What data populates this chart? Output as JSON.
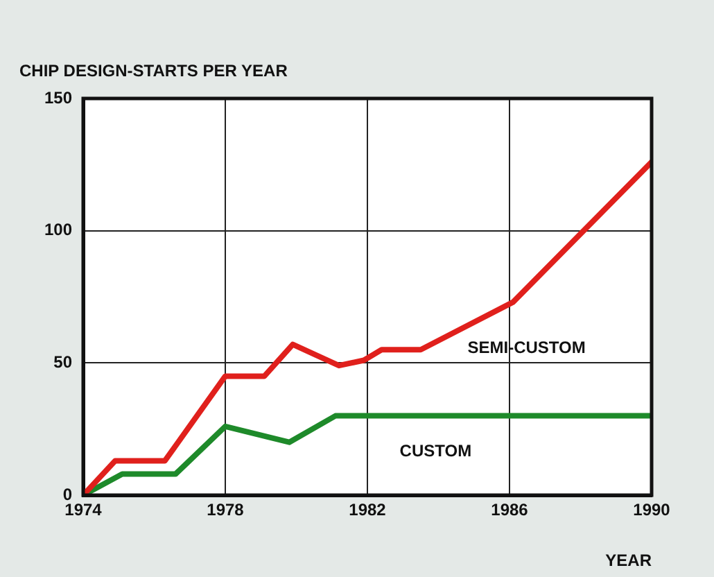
{
  "chart_data": {
    "type": "line",
    "title": "CHIP DESIGN-STARTS PER YEAR",
    "xlabel": "YEAR",
    "xlim": [
      1974,
      1990
    ],
    "xticks": [
      1974,
      1978,
      1982,
      1986,
      1990
    ],
    "ylim": [
      0,
      150
    ],
    "yticks": [
      0,
      50,
      100,
      150
    ],
    "grid": true,
    "legend": false,
    "marker": "none",
    "line_style": "solid",
    "series": [
      {
        "name": "SEMI-CUSTOM",
        "color": "#e0201c",
        "x": [
          1974,
          1974.9,
          1976.3,
          1978,
          1979.1,
          1979.9,
          1981.2,
          1981.9,
          1982.4,
          1983.5,
          1986.1,
          1990
        ],
        "values": [
          0,
          13,
          13,
          45,
          45,
          57,
          49,
          51,
          55,
          55,
          73,
          126
        ]
      },
      {
        "name": "CUSTOM",
        "color": "#1e8a2a",
        "x": [
          1974,
          1975.1,
          1976.6,
          1978,
          1979.8,
          1981.1,
          1990
        ],
        "values": [
          0,
          8,
          8,
          26,
          20,
          30,
          30
        ]
      }
    ]
  }
}
